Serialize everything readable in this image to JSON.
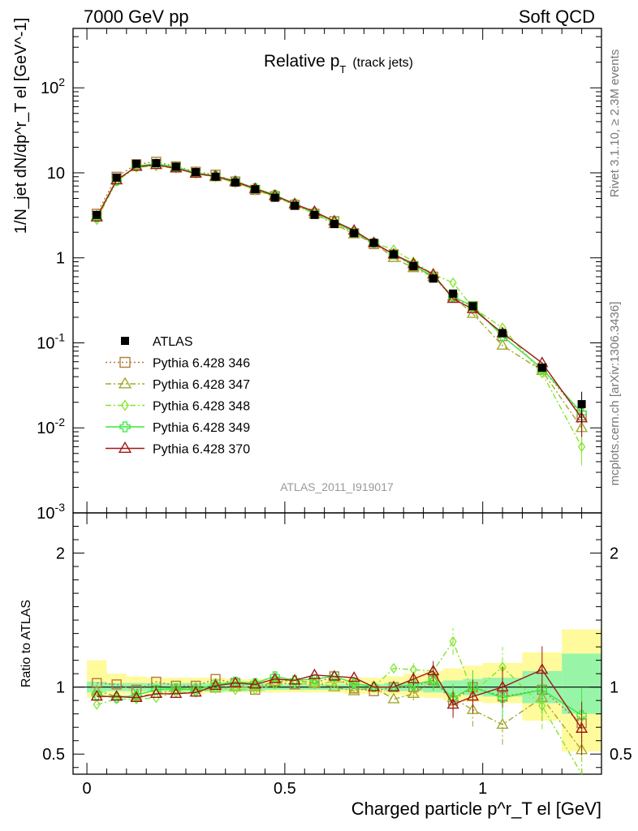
{
  "header": {
    "left": "7000 GeV pp",
    "right": "Soft QCD"
  },
  "plot_title": {
    "main": "Relative p",
    "sub": "T",
    "note": "(track jets)"
  },
  "side_text": {
    "rivet": "Rivet 3.1.10, ≥ 2.3M events",
    "mcplots": "mcplots.cern.ch [arXiv:1306.3436]"
  },
  "watermark": "ATLAS_2011_I919017",
  "chart_data": [
    {
      "type": "line",
      "panel": "main",
      "ylabel": "1/N_jet dN/dp^r_T el [GeV^-1]",
      "yscale": "log",
      "ylim": [
        0.001,
        500
      ],
      "xlim": [
        -0.035,
        1.3
      ],
      "x_ticks": [
        0,
        0.5,
        1
      ],
      "y_tick_labels": [
        "10^-3",
        "10^-2",
        "10^-1",
        "1",
        "10",
        "10^2"
      ],
      "x": [
        0.025,
        0.075,
        0.125,
        0.175,
        0.225,
        0.275,
        0.325,
        0.375,
        0.425,
        0.475,
        0.525,
        0.575,
        0.625,
        0.675,
        0.725,
        0.775,
        0.825,
        0.875,
        0.925,
        0.975,
        1.05,
        1.15,
        1.25
      ],
      "series": [
        {
          "name": "ATLAS",
          "color": "#000000",
          "marker": "square-filled",
          "line": "none",
          "values": [
            3.2,
            8.8,
            12.8,
            13.0,
            11.8,
            10.2,
            9.0,
            7.7,
            6.4,
            5.1,
            4.1,
            3.2,
            2.5,
            1.95,
            1.5,
            1.1,
            0.8,
            0.57,
            0.38,
            0.27,
            0.13,
            0.051,
            0.019
          ]
        },
        {
          "name": "Pythia 6.428 346",
          "color": "#b07c3c",
          "marker": "square-open",
          "line": "dotted",
          "values": [
            3.3,
            9.0,
            12.6,
            13.5,
            11.9,
            10.3,
            9.5,
            7.9,
            6.3,
            5.3,
            4.2,
            3.3,
            2.7,
            1.95,
            1.45,
            1.1,
            0.8,
            0.6,
            0.34,
            0.27,
            0.12,
            0.05,
            0.014
          ]
        },
        {
          "name": "Pythia 6.428 347",
          "color": "#a3a82d",
          "marker": "triangle-open",
          "line": "dashdot",
          "values": [
            3.1,
            8.2,
            11.9,
            12.4,
            11.6,
            10.1,
            8.9,
            7.7,
            6.4,
            5.3,
            4.3,
            3.3,
            2.5,
            1.9,
            1.5,
            1.0,
            0.76,
            0.6,
            0.35,
            0.22,
            0.093,
            0.047,
            0.01
          ]
        },
        {
          "name": "Pythia 6.428 348",
          "color": "#85e62c",
          "marker": "diamond-open",
          "line": "dashdot",
          "values": [
            2.8,
            8.0,
            11.6,
            12.0,
            11.3,
            9.8,
            8.9,
            7.6,
            6.3,
            5.2,
            4.2,
            3.3,
            2.6,
            2.0,
            1.5,
            1.25,
            0.9,
            0.64,
            0.51,
            0.26,
            0.15,
            0.044,
            0.006
          ]
        },
        {
          "name": "Pythia 6.428 349",
          "color": "#39e83c",
          "marker": "plus-open",
          "line": "solid",
          "values": [
            3.0,
            8.1,
            12.0,
            12.8,
            11.7,
            10.0,
            9.2,
            8.0,
            6.6,
            5.5,
            4.3,
            3.4,
            2.7,
            2.0,
            1.5,
            1.1,
            0.82,
            0.6,
            0.35,
            0.27,
            0.12,
            0.05,
            0.015
          ]
        },
        {
          "name": "Pythia 6.428 370",
          "color": "#a01818",
          "marker": "triangle-open",
          "line": "solid",
          "values": [
            3.0,
            8.2,
            11.8,
            12.4,
            11.3,
            9.8,
            9.1,
            7.9,
            6.5,
            5.4,
            4.3,
            3.5,
            2.7,
            2.1,
            1.5,
            1.1,
            0.85,
            0.64,
            0.33,
            0.25,
            0.13,
            0.058,
            0.013
          ]
        }
      ]
    },
    {
      "type": "line",
      "panel": "ratio",
      "xlabel": "Charged particle p^r_T el [GeV]",
      "ylabel": "Ratio to ATLAS",
      "ylim": [
        0.35,
        2.3
      ],
      "xlim": [
        -0.035,
        1.3
      ],
      "x_ticks": [
        0,
        0.5,
        1
      ],
      "y_ticks": [
        0.5,
        1,
        2
      ],
      "x_edges": [
        0,
        0.05,
        0.1,
        0.15,
        0.2,
        0.25,
        0.3,
        0.35,
        0.4,
        0.45,
        0.5,
        0.55,
        0.6,
        0.65,
        0.7,
        0.75,
        0.8,
        0.85,
        0.9,
        0.95,
        1.0,
        1.1,
        1.2,
        1.3
      ],
      "band_stat": [
        [
          0.96,
          1.04
        ],
        [
          0.97,
          1.03
        ],
        [
          0.97,
          1.03
        ],
        [
          0.97,
          1.03
        ],
        [
          0.97,
          1.03
        ],
        [
          0.97,
          1.03
        ],
        [
          0.97,
          1.03
        ],
        [
          0.97,
          1.03
        ],
        [
          0.97,
          1.03
        ],
        [
          0.98,
          1.02
        ],
        [
          0.98,
          1.02
        ],
        [
          0.98,
          1.02
        ],
        [
          0.98,
          1.02
        ],
        [
          0.98,
          1.02
        ],
        [
          0.98,
          1.02
        ],
        [
          0.97,
          1.03
        ],
        [
          0.97,
          1.03
        ],
        [
          0.96,
          1.04
        ],
        [
          0.95,
          1.05
        ],
        [
          0.94,
          1.06
        ],
        [
          0.93,
          1.07
        ],
        [
          0.88,
          1.12
        ],
        [
          0.8,
          1.25
        ]
      ],
      "band_total": [
        [
          0.92,
          1.2
        ],
        [
          0.94,
          1.1
        ],
        [
          0.95,
          1.08
        ],
        [
          0.95,
          1.07
        ],
        [
          0.95,
          1.07
        ],
        [
          0.95,
          1.07
        ],
        [
          0.96,
          1.07
        ],
        [
          0.96,
          1.06
        ],
        [
          0.96,
          1.06
        ],
        [
          0.96,
          1.06
        ],
        [
          0.96,
          1.06
        ],
        [
          0.96,
          1.06
        ],
        [
          0.96,
          1.06
        ],
        [
          0.95,
          1.07
        ],
        [
          0.95,
          1.07
        ],
        [
          0.94,
          1.08
        ],
        [
          0.93,
          1.1
        ],
        [
          0.92,
          1.12
        ],
        [
          0.9,
          1.14
        ],
        [
          0.89,
          1.16
        ],
        [
          0.88,
          1.18
        ],
        [
          0.75,
          1.26
        ],
        [
          0.52,
          1.43
        ]
      ],
      "series": [
        {
          "name": "Pythia 6.428 346",
          "color": "#b07c3c",
          "values": [
            1.03,
            1.02,
            0.98,
            1.04,
            1.01,
            1.01,
            1.06,
            1.03,
            0.98,
            1.04,
            1.02,
            1.03,
            1.08,
            0.99,
            0.97,
            1.0,
            1.0,
            1.05,
            0.9,
            1.0,
            0.93,
            0.98,
            0.73
          ]
        },
        {
          "name": "Pythia 6.428 347",
          "color": "#a3a82d",
          "values": [
            0.97,
            0.93,
            0.93,
            0.95,
            0.98,
            0.99,
            0.99,
            1.0,
            1.0,
            1.04,
            1.05,
            1.03,
            1.0,
            0.97,
            1.0,
            0.91,
            0.95,
            1.05,
            0.92,
            0.83,
            0.72,
            0.92,
            0.53
          ]
        },
        {
          "name": "Pythia 6.428 348",
          "color": "#85e62c",
          "values": [
            0.87,
            0.91,
            0.91,
            0.92,
            0.96,
            0.96,
            0.99,
            0.98,
            0.98,
            1.02,
            1.03,
            1.02,
            1.04,
            1.03,
            1.0,
            1.14,
            1.13,
            1.12,
            1.34,
            0.96,
            1.15,
            0.86,
            0.3
          ]
        },
        {
          "name": "Pythia 6.428 349",
          "color": "#39e83c",
          "values": [
            0.94,
            0.92,
            0.94,
            0.98,
            0.99,
            0.98,
            1.02,
            1.04,
            1.03,
            1.08,
            1.05,
            1.06,
            1.08,
            1.03,
            1.0,
            1.0,
            1.02,
            1.05,
            0.92,
            1.0,
            0.92,
            0.98,
            0.79
          ]
        },
        {
          "name": "Pythia 6.428 370",
          "color": "#a01818",
          "values": [
            0.93,
            0.93,
            0.92,
            0.95,
            0.95,
            0.96,
            1.01,
            1.03,
            1.02,
            1.06,
            1.05,
            1.09,
            1.08,
            1.07,
            1.0,
            1.0,
            1.06,
            1.12,
            0.87,
            0.93,
            1.0,
            1.13,
            0.69
          ]
        }
      ]
    }
  ]
}
